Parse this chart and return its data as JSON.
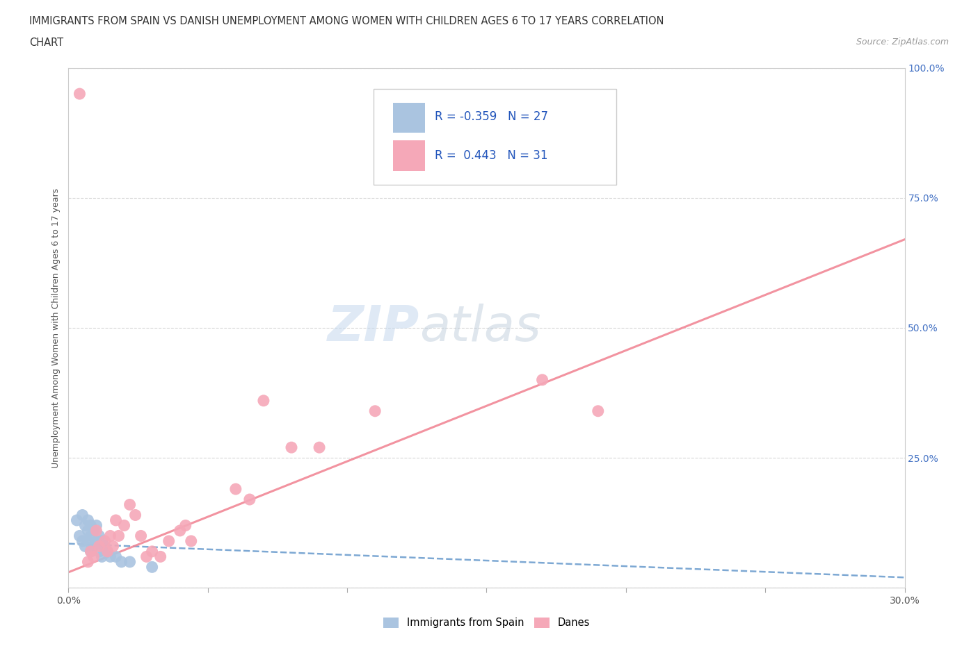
{
  "title_line1": "IMMIGRANTS FROM SPAIN VS DANISH UNEMPLOYMENT AMONG WOMEN WITH CHILDREN AGES 6 TO 17 YEARS CORRELATION",
  "title_line2": "CHART",
  "source": "Source: ZipAtlas.com",
  "ylabel": "Unemployment Among Women with Children Ages 6 to 17 years",
  "xlim": [
    0.0,
    0.3
  ],
  "ylim": [
    0.0,
    1.0
  ],
  "xticks": [
    0.0,
    0.05,
    0.1,
    0.15,
    0.2,
    0.25,
    0.3
  ],
  "yticks": [
    0.0,
    0.25,
    0.5,
    0.75,
    1.0
  ],
  "yticklabels_right": [
    "",
    "25.0%",
    "50.0%",
    "75.0%",
    "100.0%"
  ],
  "blue_R": -0.359,
  "blue_N": 27,
  "pink_R": 0.443,
  "pink_N": 31,
  "blue_color": "#aac4e0",
  "pink_color": "#f5a8b8",
  "blue_line_color": "#6699cc",
  "pink_line_color": "#f08090",
  "legend_label_blue": "Immigrants from Spain",
  "legend_label_pink": "Danes",
  "blue_scatter_x": [
    0.003,
    0.004,
    0.005,
    0.005,
    0.006,
    0.006,
    0.007,
    0.007,
    0.007,
    0.008,
    0.008,
    0.008,
    0.009,
    0.009,
    0.01,
    0.01,
    0.011,
    0.011,
    0.012,
    0.012,
    0.013,
    0.014,
    0.015,
    0.017,
    0.019,
    0.022,
    0.03
  ],
  "blue_scatter_y": [
    0.13,
    0.1,
    0.14,
    0.09,
    0.12,
    0.08,
    0.13,
    0.11,
    0.09,
    0.12,
    0.1,
    0.07,
    0.11,
    0.08,
    0.12,
    0.09,
    0.1,
    0.07,
    0.09,
    0.06,
    0.08,
    0.07,
    0.06,
    0.06,
    0.05,
    0.05,
    0.04
  ],
  "pink_scatter_x": [
    0.004,
    0.007,
    0.008,
    0.009,
    0.01,
    0.011,
    0.013,
    0.014,
    0.015,
    0.016,
    0.017,
    0.018,
    0.02,
    0.022,
    0.024,
    0.026,
    0.028,
    0.03,
    0.033,
    0.036,
    0.04,
    0.042,
    0.044,
    0.06,
    0.065,
    0.07,
    0.08,
    0.09,
    0.11,
    0.17,
    0.19
  ],
  "pink_scatter_y": [
    0.95,
    0.05,
    0.07,
    0.06,
    0.11,
    0.08,
    0.09,
    0.07,
    0.1,
    0.08,
    0.13,
    0.1,
    0.12,
    0.16,
    0.14,
    0.1,
    0.06,
    0.07,
    0.06,
    0.09,
    0.11,
    0.12,
    0.09,
    0.19,
    0.17,
    0.36,
    0.27,
    0.27,
    0.34,
    0.4,
    0.34
  ],
  "blue_line_x": [
    0.0,
    0.3
  ],
  "blue_line_y": [
    0.085,
    0.02
  ],
  "pink_line_x": [
    0.0,
    0.3
  ],
  "pink_line_y": [
    0.03,
    0.67
  ]
}
